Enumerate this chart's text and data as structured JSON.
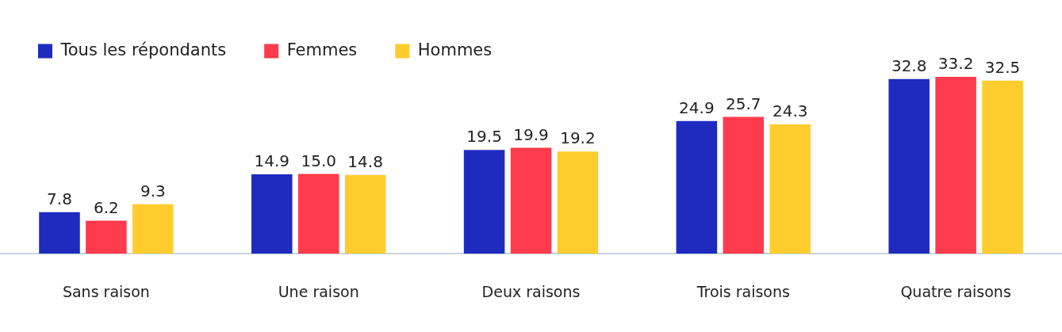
{
  "chart_data": {
    "type": "bar",
    "categories": [
      "Sans raison",
      "Une raison",
      "Deux raisons",
      "Trois raisons",
      "Quatre raisons"
    ],
    "series": [
      {
        "name": "Tous les répondants",
        "color": "#1f2bbf",
        "values": [
          7.8,
          14.9,
          19.5,
          24.9,
          32.8
        ],
        "value_labels": [
          "7.8",
          "14.9",
          "19.5",
          "24.9",
          "32.8"
        ]
      },
      {
        "name": "Femmes",
        "color": "#ff3b4d",
        "values": [
          6.2,
          15.0,
          19.9,
          25.7,
          33.2
        ],
        "value_labels": [
          "6.2",
          "15.0",
          "19.9",
          "25.7",
          "33.2"
        ]
      },
      {
        "name": "Hommes",
        "color": "#ffcc2e",
        "values": [
          9.3,
          14.8,
          19.2,
          24.3,
          32.5
        ],
        "value_labels": [
          "9.3",
          "14.8",
          "19.2",
          "24.3",
          "32.5"
        ]
      }
    ],
    "tick_labels": "x",
    "grid": false,
    "legend": "top left"
  }
}
